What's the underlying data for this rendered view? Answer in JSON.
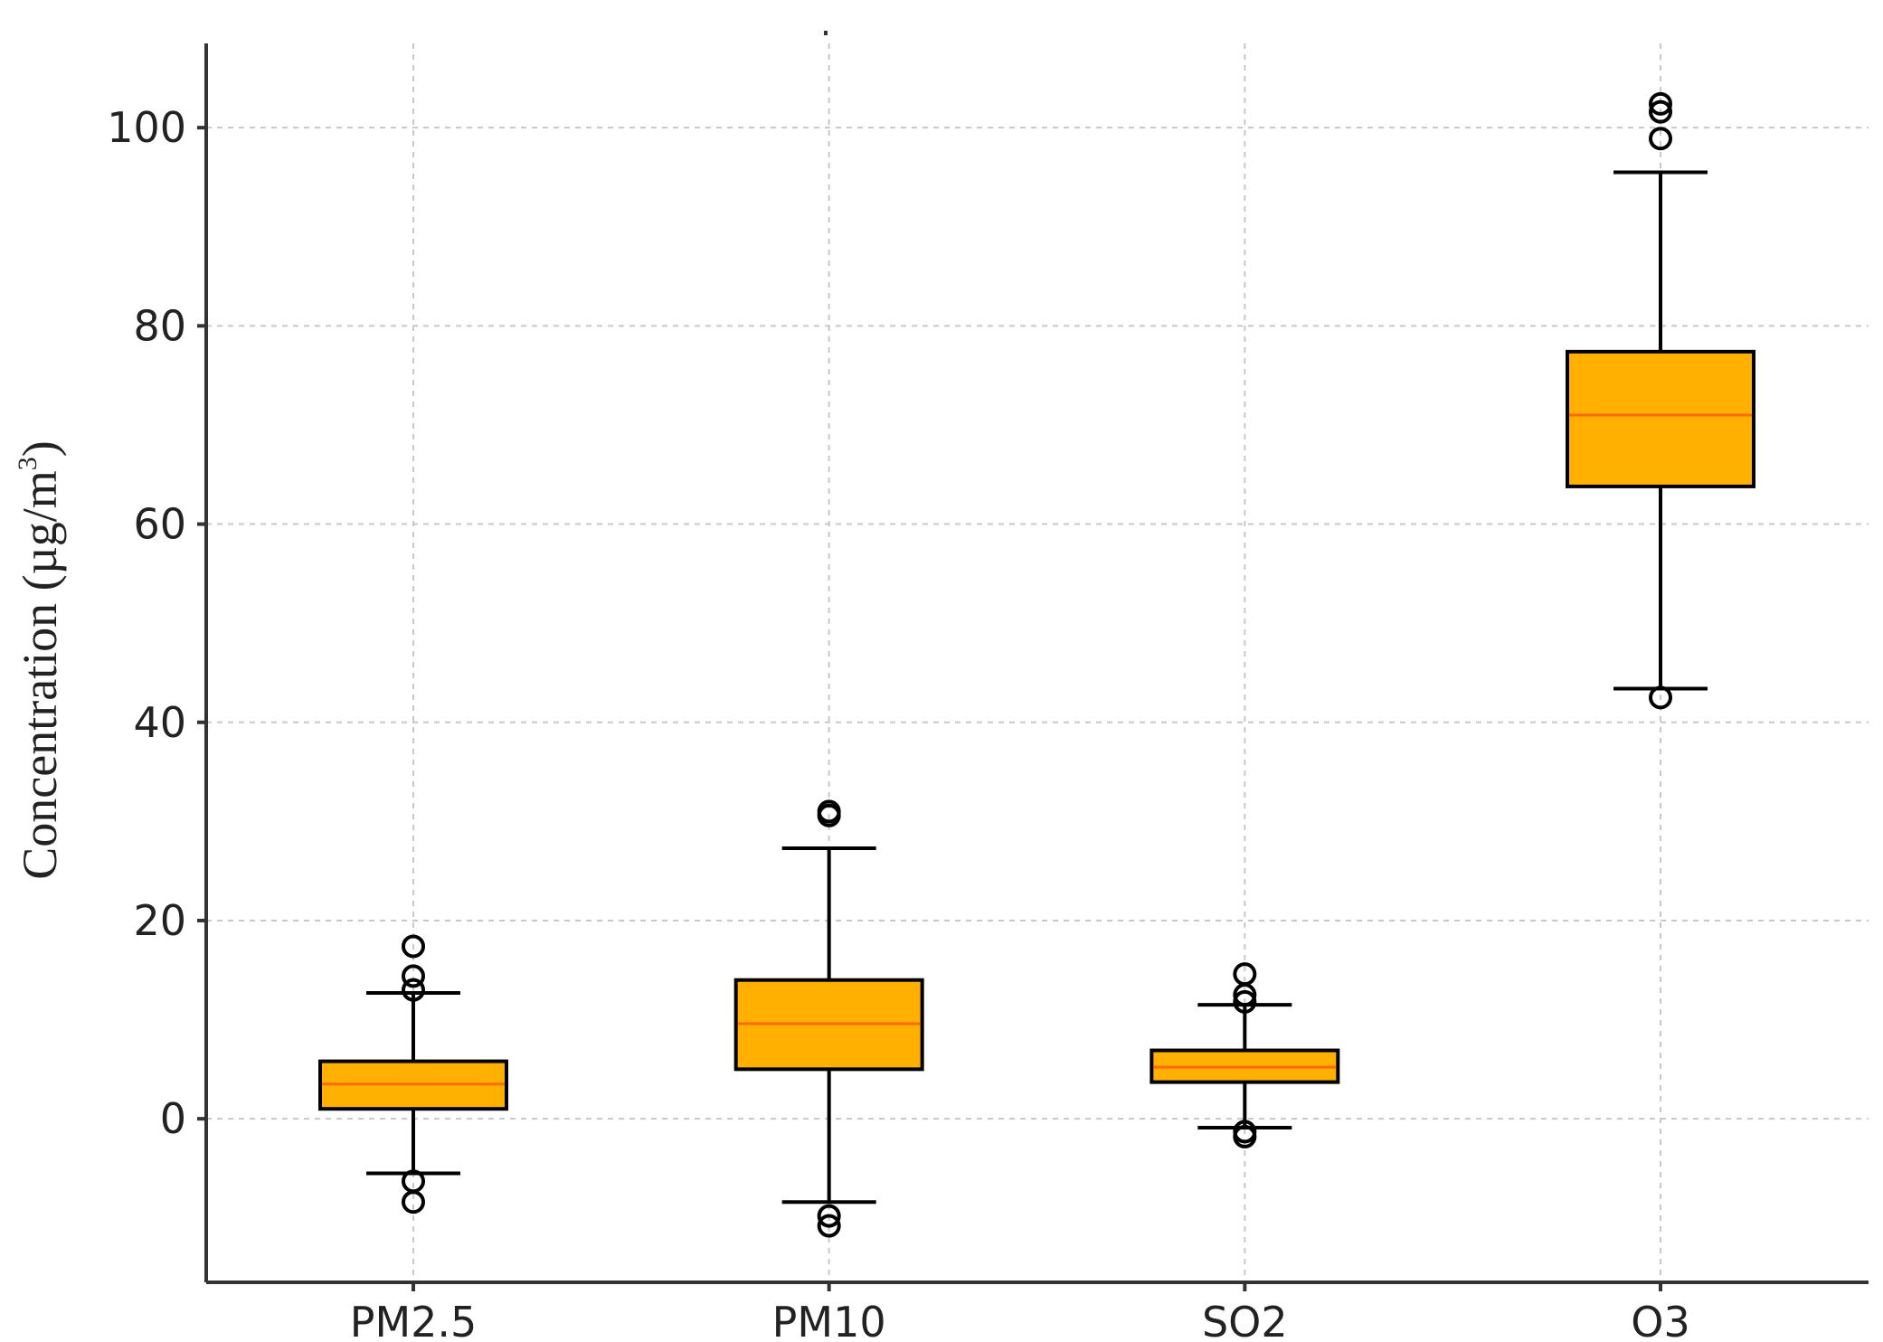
{
  "chart_data": {
    "type": "box",
    "title": "",
    "xlabel": "",
    "ylabel": "Concentration (µg/m",
    "ylabel_superscript": "3",
    "ylabel_suffix": ")",
    "ylim": [
      -16.5,
      108.5
    ],
    "yticks": [
      0,
      20,
      40,
      60,
      80,
      100
    ],
    "grid": true,
    "categories": [
      "PM2.5",
      "PM10",
      "SO2",
      "O3"
    ],
    "boxes": [
      {
        "name": "PM2.5",
        "whisker_low": -5.5,
        "q1": 1.0,
        "median": 3.5,
        "q3": 5.8,
        "whisker_high": 12.7,
        "fliers": [
          -6.3,
          -8.4,
          13.0,
          14.4,
          17.4
        ]
      },
      {
        "name": "PM10",
        "whisker_low": -8.4,
        "q1": 5.0,
        "median": 9.6,
        "q3": 14.0,
        "whisker_high": 27.3,
        "fliers": [
          -9.8,
          -10.8,
          30.6,
          31.0
        ]
      },
      {
        "name": "SO2",
        "whisker_low": -0.9,
        "q1": 3.7,
        "median": 5.2,
        "q3": 6.9,
        "whisker_high": 11.5,
        "fliers": [
          -1.3,
          -1.8,
          11.8,
          12.5,
          14.6
        ]
      },
      {
        "name": "O3",
        "whisker_low": 43.4,
        "q1": 63.8,
        "median": 71.0,
        "q3": 77.4,
        "whisker_high": 95.5,
        "fliers": [
          42.5,
          98.9,
          101.6,
          102.4
        ]
      }
    ],
    "colors": {
      "box_fill": "#FFB000",
      "median": "#FF6A00",
      "edge": "#000000",
      "grid": "#C8C8C8"
    }
  }
}
